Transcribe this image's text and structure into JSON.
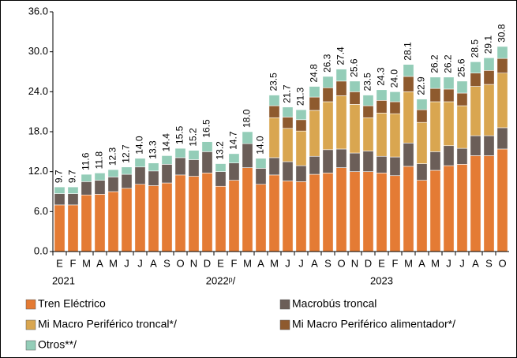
{
  "chart_data": {
    "type": "stacked-bar",
    "categories": [
      "E",
      "F",
      "M",
      "A",
      "M",
      "J",
      "J",
      "A",
      "S",
      "O",
      "N",
      "D",
      "E",
      "F",
      "M",
      "A",
      "M",
      "J",
      "J",
      "A",
      "S",
      "O",
      "N",
      "D",
      "E",
      "F",
      "M",
      "A",
      "M",
      "J",
      "J",
      "A",
      "S",
      "O"
    ],
    "year_labels": [
      "2021",
      "2022ᵖ/",
      "2023"
    ],
    "series": [
      {
        "name": "Tren Eléctrico",
        "color": "#E47B34",
        "values": [
          7.0,
          7.0,
          8.5,
          8.6,
          9.0,
          9.5,
          10.1,
          9.9,
          10.3,
          11.5,
          11.3,
          11.8,
          9.8,
          10.7,
          12.6,
          10.1,
          11.5,
          10.6,
          10.5,
          11.6,
          11.8,
          12.6,
          12.0,
          12.0,
          11.8,
          11.4,
          12.8,
          10.7,
          12.2,
          12.9,
          13.1,
          14.4,
          14.4,
          15.4
        ]
      },
      {
        "name": "Macrobús troncal",
        "color": "#6B5E58",
        "values": [
          1.7,
          1.7,
          2.0,
          2.1,
          2.2,
          2.1,
          2.6,
          2.2,
          2.8,
          2.6,
          2.5,
          3.2,
          2.2,
          2.6,
          3.6,
          2.4,
          2.6,
          2.9,
          2.4,
          2.7,
          3.5,
          2.8,
          2.8,
          3.1,
          2.5,
          2.8,
          3.5,
          2.5,
          2.8,
          3.0,
          2.4,
          3.0,
          3.0,
          3.2
        ]
      },
      {
        "name": "Mi Macro Periférico troncal*/",
        "color": "#D9A650",
        "values": [
          null,
          null,
          null,
          null,
          null,
          null,
          null,
          null,
          null,
          null,
          null,
          null,
          null,
          null,
          null,
          null,
          6.0,
          5.0,
          5.2,
          6.9,
          7.2,
          8.0,
          7.3,
          5.0,
          6.5,
          6.5,
          7.7,
          6.2,
          7.5,
          6.6,
          6.4,
          7.4,
          7.7,
          8.2
        ]
      },
      {
        "name": "Mi Macro Periférico alimentador*/",
        "color": "#8E5A2E",
        "values": [
          null,
          null,
          null,
          null,
          null,
          null,
          null,
          null,
          null,
          null,
          null,
          null,
          null,
          null,
          null,
          null,
          1.8,
          1.7,
          1.7,
          2.0,
          2.1,
          2.2,
          1.9,
          1.8,
          1.9,
          1.8,
          2.3,
          1.9,
          2.0,
          1.9,
          1.9,
          2.0,
          2.1,
          2.2
        ]
      },
      {
        "name": "Otros**/",
        "color": "#94CDB8",
        "values": [
          1.0,
          1.0,
          1.1,
          1.1,
          1.1,
          1.1,
          1.3,
          1.2,
          1.3,
          1.4,
          1.4,
          1.5,
          1.2,
          1.4,
          1.8,
          1.5,
          1.6,
          1.5,
          1.5,
          1.6,
          1.7,
          1.8,
          1.6,
          1.6,
          1.6,
          1.5,
          1.8,
          1.6,
          1.7,
          1.8,
          1.8,
          1.7,
          1.9,
          1.8
        ]
      }
    ],
    "totals": [
      9.7,
      9.7,
      11.6,
      11.8,
      12.3,
      12.7,
      14.0,
      13.3,
      14.4,
      15.5,
      15.2,
      16.5,
      13.2,
      14.7,
      18.0,
      14.0,
      23.5,
      21.7,
      21.3,
      24.8,
      26.3,
      27.4,
      25.6,
      23.5,
      24.3,
      24.0,
      28.1,
      22.9,
      26.2,
      26.2,
      25.6,
      28.5,
      29.1,
      30.8
    ],
    "total_labels": [
      "9.7",
      "9.7",
      "11.6",
      "11.8",
      "12.3",
      "12.7",
      "14.0",
      "13.3",
      "14.4",
      "15.5",
      "15.2",
      "16.5",
      "13.2",
      "14.7",
      "18.0",
      "14.0",
      "23.5",
      "21.7",
      "21.3",
      "24.8",
      "26.3",
      "27.4",
      "25.6",
      "23.5",
      "24.3",
      "24.0",
      "28.1",
      "22.9",
      "26.2",
      "26.2",
      "25.6",
      "28.5",
      "29.1",
      "30.8"
    ],
    "ylim": [
      0,
      36
    ],
    "yticks": [
      {
        "value": 0,
        "label": "0.0"
      },
      {
        "value": 6,
        "label": "6.0"
      },
      {
        "value": 12,
        "label": "12.0"
      },
      {
        "value": 18,
        "label": "18.0"
      },
      {
        "value": 24,
        "label": "24.0"
      },
      {
        "value": 30,
        "label": "30.0"
      },
      {
        "value": 36,
        "label": "36.0"
      }
    ]
  }
}
